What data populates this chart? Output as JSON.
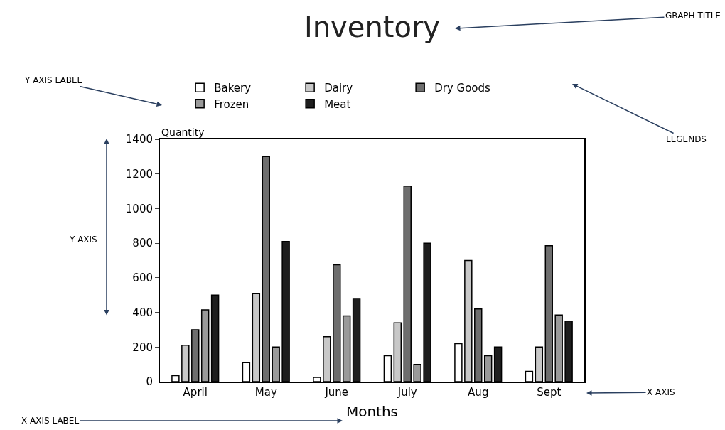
{
  "chart_data": {
    "type": "bar",
    "title": "Inventory",
    "xlabel": "Months",
    "ylabel": "Quantity",
    "categories": [
      "April",
      "May",
      "June",
      "July",
      "Aug",
      "Sept"
    ],
    "series": [
      {
        "name": "Bakery",
        "color": "#ffffff",
        "values": [
          35,
          110,
          25,
          150,
          220,
          60
        ]
      },
      {
        "name": "Dairy",
        "color": "#c8c8c8",
        "values": [
          210,
          510,
          260,
          340,
          700,
          200
        ]
      },
      {
        "name": "Dry Goods",
        "color": "#6e6e6e",
        "values": [
          300,
          1300,
          675,
          1130,
          420,
          785
        ]
      },
      {
        "name": "Frozen",
        "color": "#9a9a9a",
        "values": [
          415,
          200,
          380,
          100,
          150,
          385
        ]
      },
      {
        "name": "Meat",
        "color": "#1e1e1e",
        "values": [
          500,
          810,
          480,
          800,
          200,
          350
        ]
      }
    ],
    "ylim": [
      0,
      1400
    ],
    "yticks": [
      0,
      200,
      400,
      600,
      800,
      1000,
      1200,
      1400
    ],
    "legend": "top",
    "annotations": [
      "GRAPH TITLE",
      "Y AXIS LABEL",
      "LEGENDS",
      "Y AXIS",
      "X AXIS",
      "X AXIS LABEL"
    ]
  }
}
